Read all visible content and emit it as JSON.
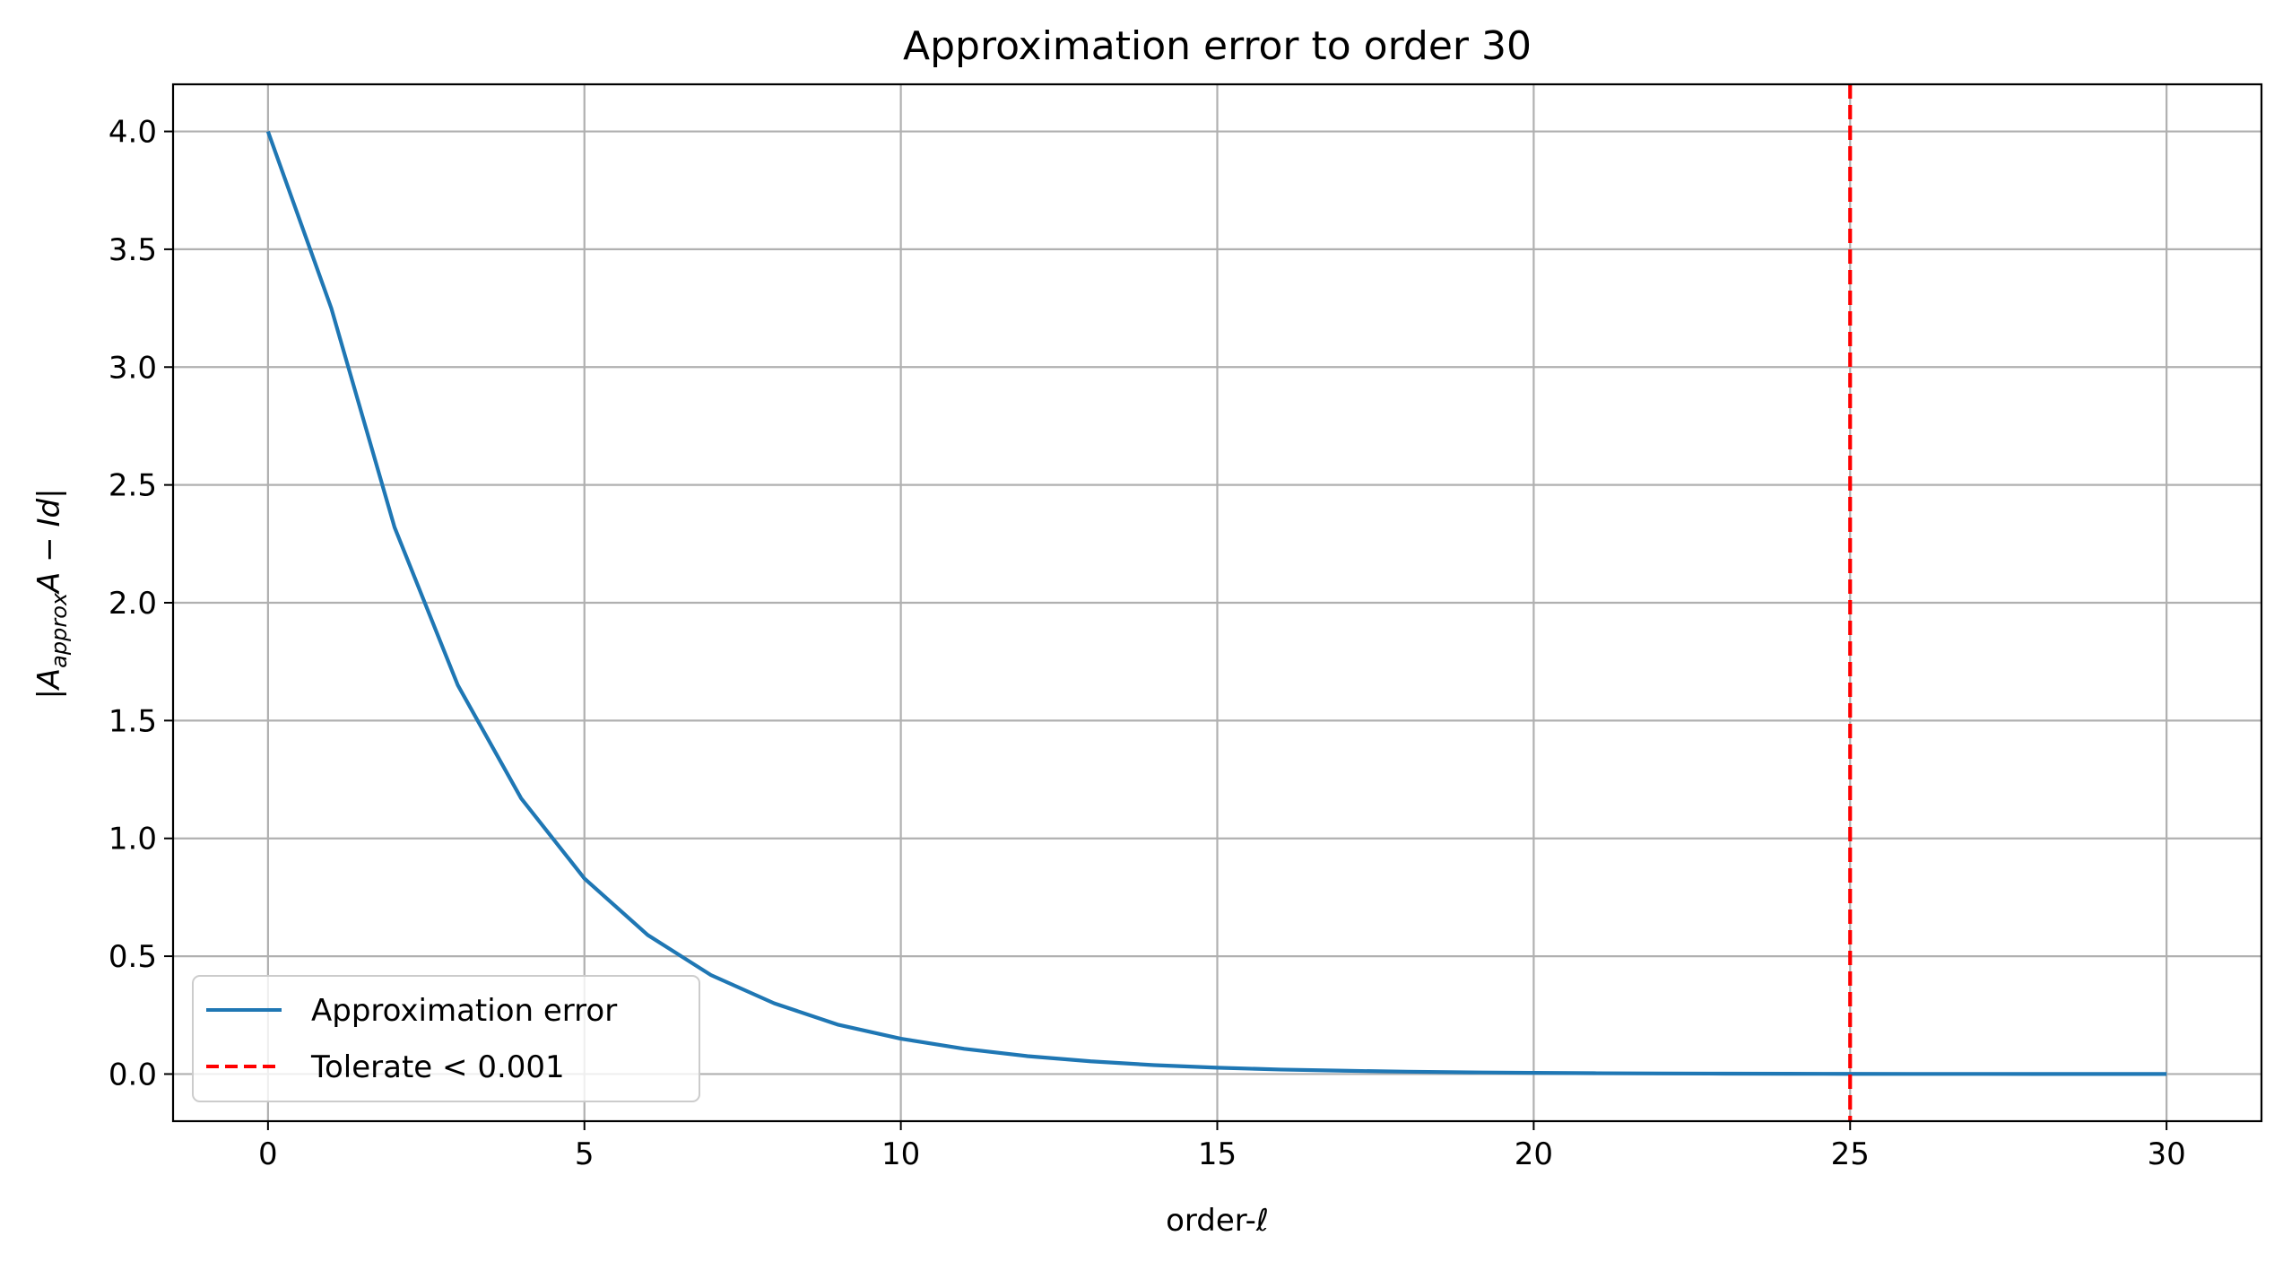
{
  "colors": {
    "series": "#1f77b4",
    "threshold": "#ff0000",
    "grid": "#b0b0b0",
    "background": "#ffffff"
  },
  "chart_data": {
    "type": "line",
    "title": "Approximation error to order 30",
    "xlabel": "order-ℓ",
    "ylabel": "|A_approx A − Id|",
    "ylabel_parts": {
      "pre": "|A",
      "sub": "approx",
      "post": "A − Id|"
    },
    "xlim": [
      -1.5,
      31.5
    ],
    "ylim": [
      -0.2,
      4.2
    ],
    "xticks": [
      0,
      5,
      10,
      15,
      20,
      25,
      30
    ],
    "xtick_labels": [
      "0",
      "5",
      "10",
      "15",
      "20",
      "25",
      "30"
    ],
    "yticks": [
      0,
      0.5,
      1.0,
      1.5,
      2.0,
      2.5,
      3.0,
      3.5,
      4.0
    ],
    "ytick_labels": [
      "0.0",
      "0.5",
      "1.0",
      "1.5",
      "2.0",
      "2.5",
      "3.0",
      "3.5",
      "4.0"
    ],
    "grid": true,
    "legend_position": "lower-left",
    "series": [
      {
        "name": "Approximation error",
        "color": "#1f77b4",
        "style": "solid",
        "x": [
          0,
          1,
          2,
          3,
          4,
          5,
          6,
          7,
          8,
          9,
          10,
          11,
          12,
          13,
          14,
          15,
          16,
          17,
          18,
          19,
          20,
          21,
          22,
          23,
          24,
          25,
          26,
          27,
          28,
          29,
          30
        ],
        "y": [
          4.0,
          3.25,
          2.32,
          1.65,
          1.17,
          0.83,
          0.59,
          0.42,
          0.3,
          0.21,
          0.15,
          0.107,
          0.076,
          0.054,
          0.038,
          0.027,
          0.019,
          0.014,
          0.01,
          0.007,
          0.005,
          0.0035,
          0.0025,
          0.0018,
          0.0013,
          0.0009,
          0.0006,
          0.0005,
          0.0003,
          0.0002,
          0.0002
        ]
      }
    ],
    "vlines": [
      {
        "name": "Tolerate < 0.001",
        "x": 25,
        "color": "#ff0000",
        "style": "dashed"
      }
    ]
  }
}
